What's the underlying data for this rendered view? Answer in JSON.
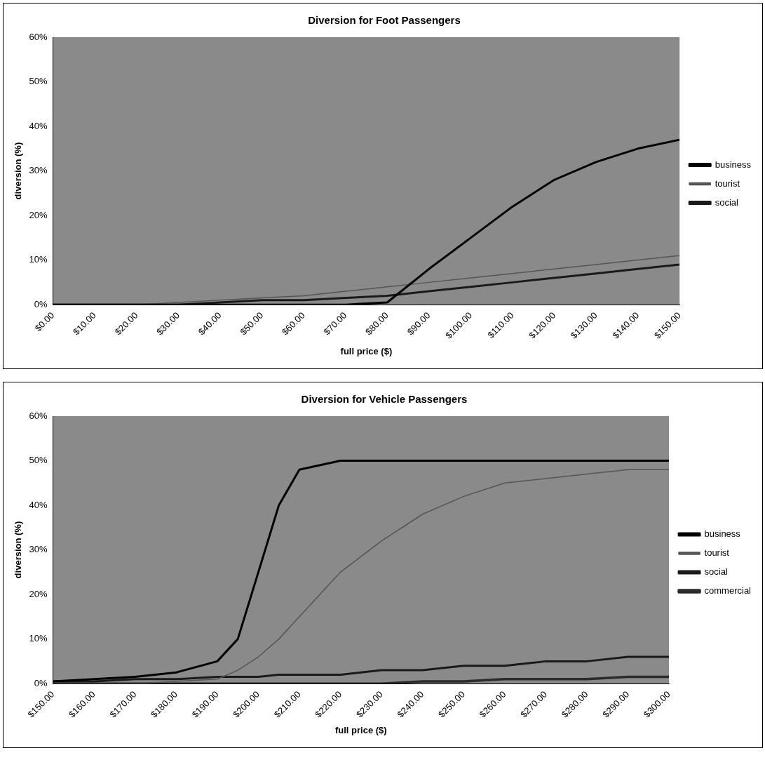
{
  "chart_data": [
    {
      "type": "line",
      "title": "Diversion for Foot Passengers",
      "xlabel": "full price ($)",
      "ylabel": "diversion (%)",
      "legend": "right",
      "grid": false,
      "marker": "none",
      "line_style": "solid",
      "xlim": [
        0,
        150
      ],
      "xticks": [
        {
          "value": 0,
          "label": "$0.00"
        },
        {
          "value": 10,
          "label": "$10.00"
        },
        {
          "value": 20,
          "label": "$20.00"
        },
        {
          "value": 30,
          "label": "$30.00"
        },
        {
          "value": 40,
          "label": "$40.00"
        },
        {
          "value": 50,
          "label": "$50.00"
        },
        {
          "value": 60,
          "label": "$60.00"
        },
        {
          "value": 70,
          "label": "$70.00"
        },
        {
          "value": 80,
          "label": "$80.00"
        },
        {
          "value": 90,
          "label": "$90.00"
        },
        {
          "value": 100,
          "label": "$100.00"
        },
        {
          "value": 110,
          "label": "$110.00"
        },
        {
          "value": 120,
          "label": "$120.00"
        },
        {
          "value": 130,
          "label": "$130.00"
        },
        {
          "value": 140,
          "label": "$140.00"
        },
        {
          "value": 150,
          "label": "$150.00"
        }
      ],
      "ylim": [
        0,
        60
      ],
      "yticks": [
        {
          "value": 0,
          "label": "0%"
        },
        {
          "value": 10,
          "label": "10%"
        },
        {
          "value": 20,
          "label": "20%"
        },
        {
          "value": 30,
          "label": "30%"
        },
        {
          "value": 40,
          "label": "40%"
        },
        {
          "value": 50,
          "label": "50%"
        },
        {
          "value": 60,
          "label": "60%"
        }
      ],
      "x": [
        0,
        10,
        20,
        30,
        40,
        50,
        60,
        70,
        80,
        90,
        100,
        110,
        120,
        130,
        140,
        150
      ],
      "series": [
        {
          "name": "business",
          "color": "#000000",
          "values": [
            0,
            0,
            0,
            0,
            0,
            0,
            0,
            0,
            0.5,
            8,
            15,
            22,
            28,
            32,
            35,
            37
          ]
        },
        {
          "name": "tourist",
          "color": "#555555",
          "values": [
            0,
            0,
            0,
            0.5,
            1,
            1.5,
            2,
            3,
            4,
            5,
            6,
            7,
            8,
            9,
            10,
            11
          ]
        },
        {
          "name": "social",
          "color": "#1a1a1a",
          "values": [
            0,
            0,
            0,
            0,
            0.5,
            1,
            1,
            1.5,
            2,
            3,
            4,
            5,
            6,
            7,
            8,
            9
          ]
        }
      ]
    },
    {
      "type": "line",
      "title": "Diversion for Vehicle Passengers",
      "xlabel": "full price ($)",
      "ylabel": "diversion (%)",
      "legend": "right",
      "grid": false,
      "marker": "none",
      "line_style": "solid",
      "xlim": [
        150,
        300
      ],
      "xticks": [
        {
          "value": 150,
          "label": "$150.00"
        },
        {
          "value": 160,
          "label": "$160.00"
        },
        {
          "value": 170,
          "label": "$170.00"
        },
        {
          "value": 180,
          "label": "$180.00"
        },
        {
          "value": 190,
          "label": "$190.00"
        },
        {
          "value": 200,
          "label": "$200.00"
        },
        {
          "value": 210,
          "label": "$210.00"
        },
        {
          "value": 220,
          "label": "$220.00"
        },
        {
          "value": 230,
          "label": "$230.00"
        },
        {
          "value": 240,
          "label": "$240.00"
        },
        {
          "value": 250,
          "label": "$250.00"
        },
        {
          "value": 260,
          "label": "$260.00"
        },
        {
          "value": 270,
          "label": "$270.00"
        },
        {
          "value": 280,
          "label": "$280.00"
        },
        {
          "value": 290,
          "label": "$290.00"
        },
        {
          "value": 300,
          "label": "$300.00"
        }
      ],
      "ylim": [
        0,
        60
      ],
      "yticks": [
        {
          "value": 0,
          "label": "0%"
        },
        {
          "value": 10,
          "label": "10%"
        },
        {
          "value": 20,
          "label": "20%"
        },
        {
          "value": 30,
          "label": "30%"
        },
        {
          "value": 40,
          "label": "40%"
        },
        {
          "value": 50,
          "label": "50%"
        },
        {
          "value": 60,
          "label": "60%"
        }
      ],
      "x": [
        150,
        160,
        170,
        180,
        190,
        195,
        200,
        205,
        210,
        220,
        230,
        240,
        250,
        260,
        270,
        280,
        290,
        300
      ],
      "series": [
        {
          "name": "business",
          "color": "#000000",
          "values": [
            0.5,
            1,
            1.5,
            2.5,
            5,
            10,
            25,
            40,
            48,
            50,
            50,
            50,
            50,
            50,
            50,
            50,
            50,
            50
          ]
        },
        {
          "name": "tourist",
          "color": "#555555",
          "values": [
            0,
            0,
            0,
            0.5,
            1,
            3,
            6,
            10,
            15,
            25,
            32,
            38,
            42,
            45,
            46,
            47,
            48,
            48
          ]
        },
        {
          "name": "social",
          "color": "#1a1a1a",
          "values": [
            0.5,
            0.5,
            1,
            1,
            1.5,
            1.5,
            1.5,
            2,
            2,
            2,
            3,
            3,
            4,
            4,
            5,
            5,
            6,
            6
          ]
        },
        {
          "name": "commercial",
          "color": "#2b2b2b",
          "values": [
            0,
            0,
            0,
            0,
            0,
            0,
            0,
            0,
            0,
            0,
            0,
            0.5,
            0.5,
            1,
            1,
            1,
            1.5,
            1.5
          ]
        }
      ]
    }
  ]
}
